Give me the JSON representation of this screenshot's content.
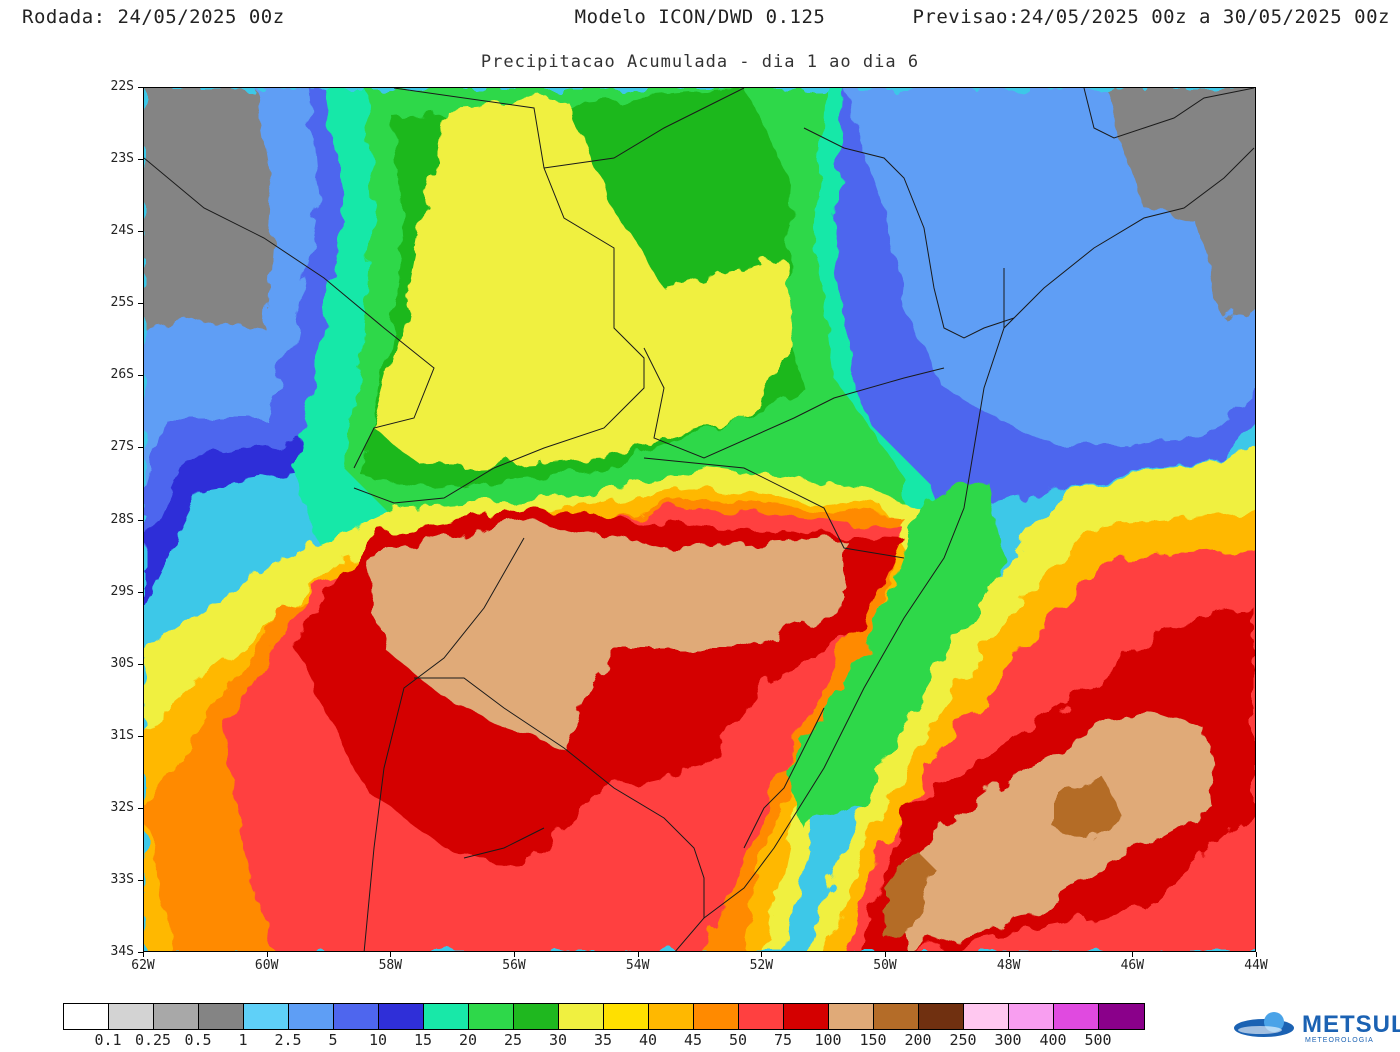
{
  "header": {
    "run_label": "Rodada: 24/05/2025 00z",
    "model_label": "Modelo ICON/DWD 0.125",
    "forecast_label": "Previsao:24/05/2025 00z a 30/05/2025 00z"
  },
  "subtitle": "Precipitacao Acumulada - dia 1 ao dia 6",
  "map": {
    "lat_labels": [
      "22S",
      "23S",
      "24S",
      "25S",
      "26S",
      "27S",
      "28S",
      "29S",
      "30S",
      "31S",
      "32S",
      "33S",
      "34S"
    ],
    "lon_labels": [
      "62W",
      "60W",
      "58W",
      "56W",
      "54W",
      "52W",
      "50W",
      "48W",
      "46W",
      "44W"
    ]
  },
  "legend": {
    "colors": [
      "#ffffff",
      "#d3d3d3",
      "#a8a8a8",
      "#848484",
      "#5fd0f8",
      "#5e9ef5",
      "#4e66ee",
      "#2f2fd8",
      "#18e8a8",
      "#2ed84a",
      "#1fb81f",
      "#f0f040",
      "#ffe000",
      "#ffb800",
      "#ff8a00",
      "#ff4040",
      "#d40000",
      "#e0aa78",
      "#b46c28",
      "#703010",
      "#ffc8f0",
      "#f89ef0",
      "#e04ae0",
      "#8a008a"
    ],
    "labels": [
      "0.1",
      "0.25",
      "0.5",
      "1",
      "2.5",
      "5",
      "10",
      "15",
      "20",
      "25",
      "30",
      "35",
      "40",
      "45",
      "50",
      "75",
      "100",
      "150",
      "200",
      "250",
      "300",
      "400",
      "500"
    ]
  },
  "logo": {
    "name": "METSUL",
    "tagline": "METEOROLOGIA"
  }
}
